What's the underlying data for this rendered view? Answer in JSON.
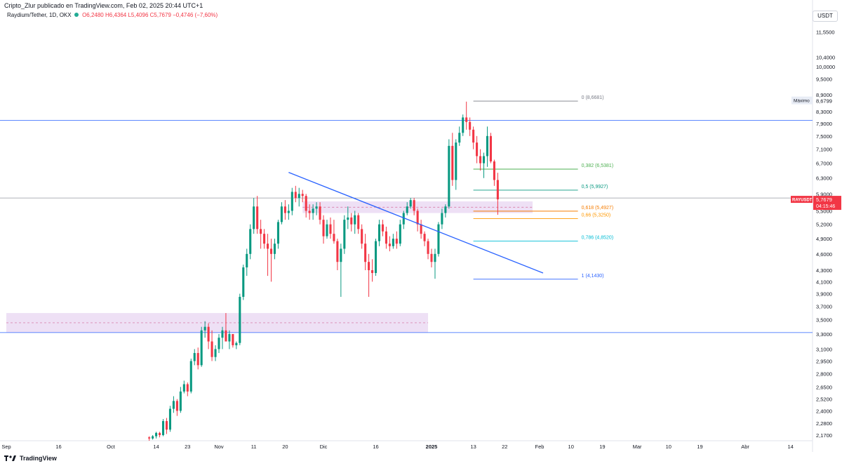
{
  "header": {
    "published_by": "Cripto_Zlur publicado en TradingView.com, Feb 02, 2025 20:44 UTC+1",
    "symbol": "Raydium/Tether, 1D, OKX",
    "open": "O6,2480",
    "high": "H6,4364",
    "low": "L5,4096",
    "close": "C5,7679",
    "change": "−0,4746 (−7,60%)",
    "currency": "USDT"
  },
  "footer": {
    "brand": "TradingView"
  },
  "colors": {
    "up": "#089981",
    "down": "#f23645",
    "trendline": "#2962ff",
    "zone": "#e8d5f2"
  },
  "chart_data": {
    "type": "candlestick",
    "y_scale": "log",
    "ylim": [
      2.1,
      13.0
    ],
    "y_ticks": [
      11.55,
      10.4,
      10.0,
      9.5,
      8.9,
      8.3,
      7.9,
      7.5,
      7.1,
      6.7,
      6.3,
      5.9,
      5.5,
      5.2,
      4.9,
      4.6,
      4.3,
      4.1,
      3.9,
      3.7,
      3.5,
      3.3,
      3.1,
      2.95,
      2.8,
      2.65,
      2.52,
      2.4,
      2.28,
      2.17
    ],
    "y_tick_labels": [
      "11,5500",
      "10,4000",
      "10,0000",
      "9,5000",
      "8,9000",
      "8,3000",
      "7,9000",
      "7,5000",
      "7,1000",
      "6,7000",
      "6,3000",
      "5,9000",
      "5,5000",
      "5,2000",
      "4,9000",
      "4,6000",
      "4,3000",
      "4,1000",
      "3,9000",
      "3,7000",
      "3,5000",
      "3,3000",
      "3,1000",
      "2,9500",
      "2,8000",
      "2,6500",
      "2,5200",
      "2,4000",
      "2,2800",
      "2,1700"
    ],
    "x_ticks": [
      {
        "label": "Sep",
        "date": "2024-09-01"
      },
      {
        "label": "16",
        "date": "2024-09-16"
      },
      {
        "label": "Oct",
        "date": "2024-10-01"
      },
      {
        "label": "14",
        "date": "2024-10-14"
      },
      {
        "label": "23",
        "date": "2024-10-23"
      },
      {
        "label": "Nov",
        "date": "2024-11-01"
      },
      {
        "label": "11",
        "date": "2024-11-11"
      },
      {
        "label": "20",
        "date": "2024-11-20"
      },
      {
        "label": "Dic",
        "date": "2024-12-01"
      },
      {
        "label": "16",
        "date": "2024-12-16"
      },
      {
        "label": "2025",
        "date": "2025-01-01"
      },
      {
        "label": "13",
        "date": "2025-01-13"
      },
      {
        "label": "22",
        "date": "2025-01-22"
      },
      {
        "label": "Feb",
        "date": "2025-02-01"
      },
      {
        "label": "10",
        "date": "2025-02-10"
      },
      {
        "label": "19",
        "date": "2025-02-19"
      },
      {
        "label": "Mar",
        "date": "2025-03-01"
      },
      {
        "label": "10",
        "date": "2025-03-10"
      },
      {
        "label": "19",
        "date": "2025-03-19"
      },
      {
        "label": "Abr",
        "date": "2025-04-01"
      },
      {
        "label": "14",
        "date": "2025-04-14"
      }
    ],
    "start_date": "2024-10-12",
    "candles": [
      [
        2.15,
        2.16,
        2.12,
        2.14
      ],
      [
        2.14,
        2.17,
        2.13,
        2.16
      ],
      [
        2.16,
        2.2,
        2.14,
        2.19
      ],
      [
        2.19,
        2.2,
        2.15,
        2.17
      ],
      [
        2.17,
        2.32,
        2.16,
        2.3
      ],
      [
        2.3,
        2.33,
        2.18,
        2.22
      ],
      [
        2.22,
        2.45,
        2.2,
        2.42
      ],
      [
        2.42,
        2.55,
        2.38,
        2.5
      ],
      [
        2.5,
        2.52,
        2.35,
        2.4
      ],
      [
        2.4,
        2.65,
        2.38,
        2.6
      ],
      [
        2.6,
        2.72,
        2.58,
        2.68
      ],
      [
        2.68,
        2.7,
        2.55,
        2.6
      ],
      [
        2.6,
        2.98,
        2.58,
        2.95
      ],
      [
        2.95,
        3.1,
        2.9,
        3.05
      ],
      [
        3.05,
        3.12,
        2.85,
        2.9
      ],
      [
        2.9,
        3.4,
        2.88,
        3.35
      ],
      [
        3.35,
        3.48,
        3.25,
        3.4
      ],
      [
        3.4,
        3.45,
        3.1,
        3.2
      ],
      [
        3.2,
        3.35,
        2.95,
        3.0
      ],
      [
        3.0,
        3.15,
        2.95,
        3.1
      ],
      [
        3.1,
        3.3,
        3.05,
        3.25
      ],
      [
        3.25,
        3.4,
        3.1,
        3.35
      ],
      [
        3.35,
        3.6,
        3.2,
        3.2
      ],
      [
        3.2,
        3.35,
        3.1,
        3.3
      ],
      [
        3.3,
        3.3,
        3.12,
        3.15
      ],
      [
        3.15,
        3.2,
        3.1,
        3.18
      ],
      [
        3.18,
        3.9,
        3.15,
        3.85
      ],
      [
        3.85,
        4.4,
        3.8,
        4.35
      ],
      [
        4.35,
        4.7,
        4.2,
        4.6
      ],
      [
        4.6,
        5.2,
        4.5,
        5.1
      ],
      [
        5.1,
        5.8,
        5.0,
        5.6
      ],
      [
        5.6,
        5.85,
        5.0,
        5.1
      ],
      [
        5.1,
        5.3,
        4.7,
        5.0
      ],
      [
        5.0,
        5.1,
        4.7,
        4.8
      ],
      [
        4.8,
        5.0,
        4.2,
        4.7
      ],
      [
        4.7,
        4.9,
        4.1,
        4.6
      ],
      [
        4.6,
        4.9,
        4.5,
        4.8
      ],
      [
        4.8,
        5.3,
        4.7,
        5.25
      ],
      [
        5.25,
        5.7,
        5.2,
        5.6
      ],
      [
        5.6,
        5.75,
        5.3,
        5.45
      ],
      [
        5.45,
        5.65,
        5.3,
        5.5
      ],
      [
        5.5,
        6.05,
        5.4,
        5.95
      ],
      [
        5.95,
        6.1,
        5.7,
        5.8
      ],
      [
        5.8,
        6.05,
        5.6,
        5.9
      ],
      [
        5.9,
        6.0,
        5.7,
        5.85
      ],
      [
        5.85,
        5.9,
        5.35,
        5.5
      ],
      [
        5.5,
        5.65,
        5.3,
        5.45
      ],
      [
        5.45,
        5.65,
        5.3,
        5.55
      ],
      [
        5.55,
        5.7,
        5.4,
        5.6
      ],
      [
        5.6,
        5.7,
        5.2,
        5.3
      ],
      [
        5.3,
        5.4,
        4.8,
        4.95
      ],
      [
        4.95,
        5.3,
        4.9,
        5.2
      ],
      [
        5.2,
        5.35,
        4.9,
        5.0
      ],
      [
        5.0,
        5.3,
        4.8,
        4.85
      ],
      [
        4.85,
        4.9,
        4.3,
        4.45
      ],
      [
        4.45,
        4.8,
        3.85,
        4.7
      ],
      [
        4.7,
        5.4,
        4.6,
        5.3
      ],
      [
        5.3,
        5.6,
        5.1,
        5.35
      ],
      [
        5.35,
        5.45,
        5.05,
        5.2
      ],
      [
        5.2,
        5.5,
        5.0,
        5.4
      ],
      [
        5.4,
        5.45,
        5.0,
        5.1
      ],
      [
        5.1,
        5.2,
        4.7,
        4.8
      ],
      [
        4.8,
        5.0,
        4.3,
        4.45
      ],
      [
        4.45,
        4.6,
        3.85,
        4.3
      ],
      [
        4.3,
        4.5,
        4.1,
        4.25
      ],
      [
        4.25,
        4.9,
        4.2,
        4.85
      ],
      [
        4.85,
        5.3,
        4.75,
        5.2
      ],
      [
        5.2,
        5.3,
        4.95,
        5.05
      ],
      [
        5.05,
        5.15,
        4.7,
        4.8
      ],
      [
        4.8,
        4.95,
        4.65,
        4.75
      ],
      [
        4.75,
        5.0,
        4.7,
        4.9
      ],
      [
        4.9,
        5.05,
        4.7,
        4.8
      ],
      [
        4.8,
        5.3,
        4.75,
        5.2
      ],
      [
        5.2,
        5.5,
        5.1,
        5.45
      ],
      [
        5.45,
        5.7,
        5.4,
        5.6
      ],
      [
        5.6,
        5.8,
        5.55,
        5.75
      ],
      [
        5.75,
        5.8,
        5.4,
        5.5
      ],
      [
        5.5,
        5.55,
        5.05,
        5.2
      ],
      [
        5.2,
        5.3,
        4.9,
        5.0
      ],
      [
        5.0,
        5.05,
        4.75,
        4.85
      ],
      [
        4.85,
        4.9,
        4.5,
        4.6
      ],
      [
        4.6,
        4.7,
        4.35,
        4.45
      ],
      [
        4.45,
        4.7,
        4.15,
        4.6
      ],
      [
        4.6,
        5.25,
        4.55,
        5.2
      ],
      [
        5.2,
        5.55,
        5.1,
        5.45
      ],
      [
        5.45,
        5.65,
        5.35,
        5.6
      ],
      [
        5.6,
        7.4,
        5.55,
        7.2
      ],
      [
        7.2,
        7.6,
        6.1,
        6.25
      ],
      [
        6.25,
        7.4,
        6.0,
        7.3
      ],
      [
        7.3,
        7.8,
        7.2,
        7.6
      ],
      [
        7.6,
        8.2,
        7.5,
        8.1
      ],
      [
        8.1,
        8.65,
        7.7,
        7.95
      ],
      [
        7.95,
        8.1,
        7.5,
        7.7
      ],
      [
        7.7,
        7.8,
        7.1,
        7.3
      ],
      [
        7.3,
        7.5,
        6.7,
        6.9
      ],
      [
        6.9,
        7.1,
        6.5,
        6.7
      ],
      [
        6.7,
        7.0,
        6.3,
        6.9
      ],
      [
        6.9,
        7.8,
        6.6,
        7.5
      ],
      [
        7.5,
        7.6,
        6.7,
        6.75
      ],
      [
        6.75,
        6.8,
        6.1,
        6.25
      ],
      [
        6.25,
        6.44,
        5.41,
        5.7679
      ]
    ],
    "horizontal_lines": [
      {
        "value": 8.0,
        "color": "#2962ff"
      },
      {
        "value": 5.8,
        "color": "#9598a1"
      },
      {
        "value": 3.32,
        "color": "#2962ff"
      }
    ],
    "zones": [
      {
        "from": "2024-11-25",
        "to": "2025-01-30",
        "low": 5.45,
        "high": 5.72
      },
      {
        "from": "2024-09-01",
        "to": "2024-12-31",
        "low": 3.32,
        "high": 3.6
      }
    ],
    "trendline": {
      "start": {
        "date": "2024-11-21",
        "value": 6.45
      },
      "end": {
        "date": "2025-02-02",
        "value": 4.25
      }
    },
    "fib_levels": [
      {
        "label": "0 (8,6681)",
        "value": 8.6681,
        "color": "#787b86"
      },
      {
        "label": "0,382 (6,5381)",
        "value": 6.5381,
        "color": "#4caf50"
      },
      {
        "label": "0,5 (5,9927)",
        "value": 5.9927,
        "color": "#089981"
      },
      {
        "label": "0,618 (5,4927)",
        "value": 5.4927,
        "color": "#f57c00"
      },
      {
        "label": "0,66 (5,3250)",
        "value": 5.325,
        "color": "#ff9800"
      },
      {
        "label": "0,786 (4,8520)",
        "value": 4.852,
        "color": "#00bcd4"
      },
      {
        "label": "1 (4,1430)",
        "value": 4.143,
        "color": "#2962ff"
      }
    ],
    "fib_range": {
      "from": "2025-01-13",
      "to": "2025-02-12"
    },
    "max_marker": {
      "label": "Máximo",
      "value_label": "8,6799",
      "value": 8.6799
    },
    "price_marker": {
      "symbol": "RAYUSDT",
      "value_label": "5,7679",
      "countdown": "04:15:46",
      "value": 5.7679
    }
  }
}
